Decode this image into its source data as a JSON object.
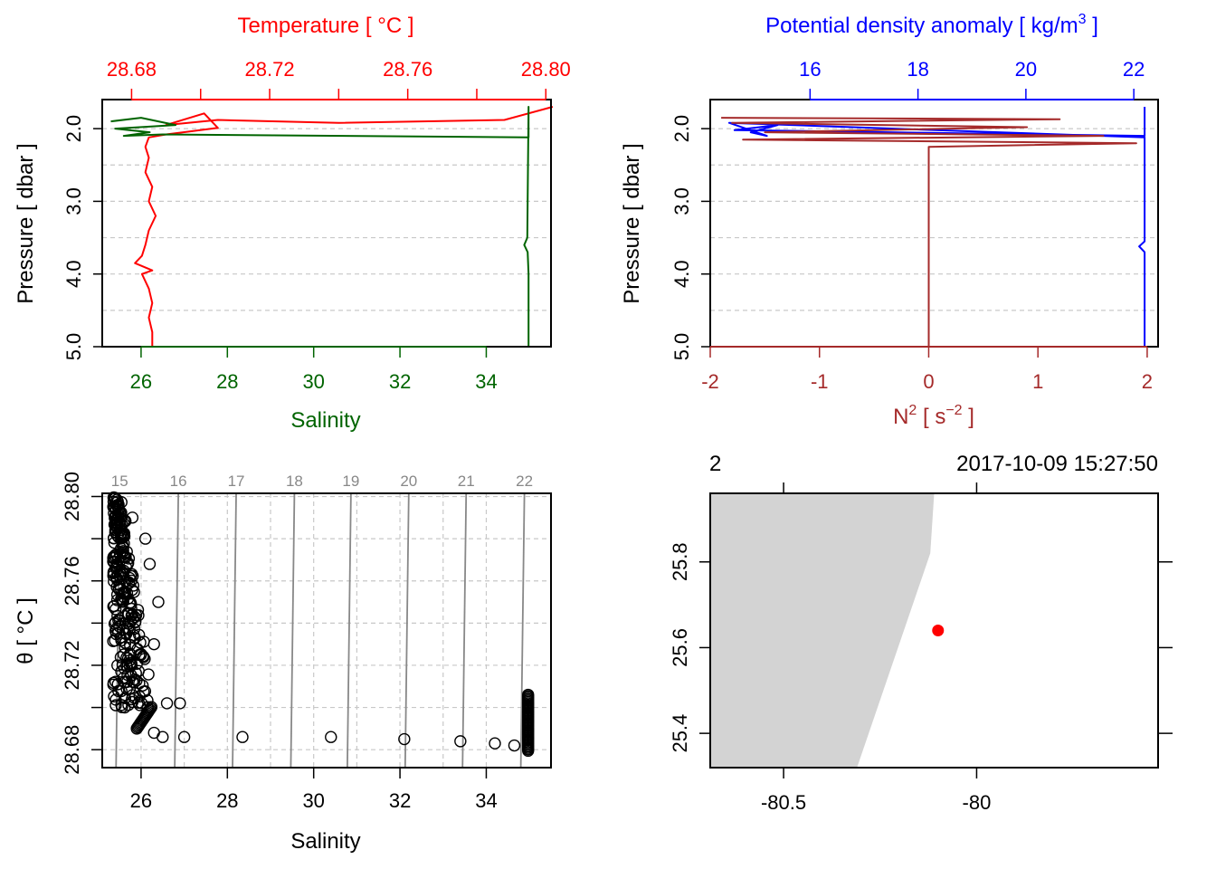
{
  "colors": {
    "temperature": "#ff0000",
    "salinity": "#006400",
    "density": "#0000ff",
    "n2": "#a52a2a",
    "isopycnal": "#888888",
    "land": "#d3d3d3",
    "station": "#ff0000"
  },
  "chart_data": [
    {
      "id": "profile_ts",
      "type": "line",
      "title": "Temperature [ °C ]",
      "xlabel": "Salinity",
      "ylabel": "Pressure [ dbar ]",
      "ylim": [
        5.0,
        1.6
      ],
      "y_ticks": [
        "2.0",
        "3.0",
        "4.0",
        "5.0"
      ],
      "top_axis": {
        "label": "Temperature [ °C ]",
        "range": [
          28.6715,
          28.8015
        ],
        "ticks": [
          "28.68",
          "28.72",
          "28.76",
          "28.80"
        ]
      },
      "bottom_axis": {
        "label": "Salinity",
        "range": [
          25.1,
          35.5
        ],
        "ticks": [
          "26",
          "28",
          "30",
          "32",
          "34"
        ]
      },
      "series": [
        {
          "name": "Temperature",
          "axis": "top",
          "points": [
            [
              28.802,
              1.7
            ],
            [
              28.788,
              1.88
            ],
            [
              28.74,
              1.92
            ],
            [
              28.705,
              1.88
            ],
            [
              28.69,
              1.95
            ],
            [
              28.701,
              1.79
            ],
            [
              28.705,
              1.99
            ],
            [
              28.695,
              2.05
            ],
            [
              28.69,
              2.08
            ],
            [
              28.685,
              2.12
            ],
            [
              28.684,
              2.25
            ],
            [
              28.685,
              2.4
            ],
            [
              28.684,
              2.6
            ],
            [
              28.686,
              2.8
            ],
            [
              28.685,
              3.0
            ],
            [
              28.687,
              3.2
            ],
            [
              28.685,
              3.4
            ],
            [
              28.684,
              3.6
            ],
            [
              28.683,
              3.75
            ],
            [
              28.681,
              3.85
            ],
            [
              28.686,
              3.95
            ],
            [
              28.683,
              4.0
            ],
            [
              28.685,
              4.2
            ],
            [
              28.686,
              4.4
            ],
            [
              28.685,
              4.6
            ],
            [
              28.686,
              4.8
            ],
            [
              28.686,
              5.0
            ]
          ]
        },
        {
          "name": "Salinity",
          "axis": "bottom",
          "points": [
            [
              25.3,
              1.9
            ],
            [
              26.0,
              1.85
            ],
            [
              26.8,
              1.95
            ],
            [
              25.4,
              2.0
            ],
            [
              26.2,
              2.05
            ],
            [
              25.6,
              2.1
            ],
            [
              26.5,
              2.08
            ],
            [
              34.98,
              2.12
            ],
            [
              34.98,
              1.7
            ],
            [
              34.95,
              3.5
            ],
            [
              34.88,
              3.6
            ],
            [
              34.96,
              3.7
            ],
            [
              34.98,
              4.0
            ],
            [
              34.98,
              5.0
            ]
          ]
        }
      ]
    },
    {
      "id": "profile_density_n2",
      "type": "line",
      "title": "Potential density anomaly [ kg/m3 ]",
      "title_superscript": "3",
      "xlabel": "N2 [ s−2 ]",
      "ylabel": "Pressure [ dbar ]",
      "ylim": [
        5.0,
        1.6
      ],
      "y_ticks": [
        "2.0",
        "3.0",
        "4.0",
        "5.0"
      ],
      "top_axis": {
        "label": "Potential density anomaly [ kg/m³ ]",
        "range": [
          14.15,
          22.45
        ],
        "ticks": [
          "16",
          "18",
          "20",
          "22"
        ]
      },
      "bottom_axis": {
        "label": "N² [ s⁻² ]",
        "range": [
          -2.0,
          2.1
        ],
        "ticks": [
          "-2",
          "-1",
          "0",
          "1",
          "2"
        ]
      },
      "series": [
        {
          "name": "Potential density anomaly",
          "axis": "top",
          "points": [
            [
              22.2,
              1.7
            ],
            [
              22.2,
              2.1
            ],
            [
              14.6,
              2.02
            ],
            [
              15.4,
              1.95
            ],
            [
              14.9,
              2.05
            ],
            [
              15.2,
              2.1
            ],
            [
              14.5,
              1.92
            ],
            [
              22.2,
              2.12
            ],
            [
              22.2,
              3.55
            ],
            [
              22.1,
              3.62
            ],
            [
              22.2,
              3.7
            ],
            [
              22.2,
              5.0
            ]
          ]
        },
        {
          "name": "N2",
          "axis": "bottom",
          "points": [
            [
              -1.9,
              1.85
            ],
            [
              1.2,
              1.87
            ],
            [
              -1.8,
              1.92
            ],
            [
              0.9,
              1.98
            ],
            [
              -1.5,
              2.05
            ],
            [
              1.6,
              2.1
            ],
            [
              -1.7,
              2.15
            ],
            [
              1.9,
              2.2
            ],
            [
              0.0,
              2.25
            ],
            [
              0.0,
              5.0
            ]
          ]
        }
      ]
    },
    {
      "id": "ts_diagram",
      "type": "scatter",
      "xlabel": "Salinity",
      "ylabel": "θ [ °C ]",
      "xlim": [
        25.1,
        35.5
      ],
      "ylim": [
        28.6715,
        28.8015
      ],
      "x_ticks": [
        "26",
        "28",
        "30",
        "32",
        "34"
      ],
      "y_ticks": [
        "28.68",
        "28.72",
        "28.76",
        "28.80"
      ],
      "isopycnals": {
        "labels": [
          "15",
          "16",
          "17",
          "18",
          "19",
          "20",
          "21",
          "22"
        ],
        "salinity_at_bottom": [
          25.42,
          26.78,
          28.12,
          29.47,
          30.78,
          32.12,
          33.45,
          34.8
        ]
      },
      "points": [
        [
          26.3,
          28.688
        ],
        [
          26.5,
          28.686
        ],
        [
          27.0,
          28.686
        ],
        [
          28.35,
          28.686
        ],
        [
          30.4,
          28.686
        ],
        [
          32.1,
          28.685
        ],
        [
          33.4,
          28.684
        ],
        [
          34.2,
          28.683
        ],
        [
          34.65,
          28.682
        ],
        [
          25.4,
          28.799
        ],
        [
          25.8,
          28.79
        ],
        [
          26.1,
          28.78
        ],
        [
          26.2,
          28.768
        ],
        [
          26.4,
          28.75
        ],
        [
          26.3,
          28.73
        ],
        [
          26.6,
          28.702
        ],
        [
          26.9,
          28.702
        ]
      ]
    },
    {
      "id": "station_map",
      "type": "scatter",
      "label_left": "2",
      "label_right": "2017-10-09 15:27:50",
      "xlim": [
        -80.69,
        -79.53
      ],
      "ylim": [
        25.32,
        25.96
      ],
      "x_ticks": [
        "-80.5",
        "-80"
      ],
      "y_ticks": [
        "25.4",
        "25.6",
        "25.8"
      ],
      "station": {
        "longitude": -80.1,
        "latitude": 25.64
      },
      "coastline": [
        [
          -80.69,
          25.96
        ],
        [
          -80.11,
          25.96
        ],
        [
          -80.12,
          25.82
        ],
        [
          -80.31,
          25.32
        ],
        [
          -80.69,
          25.32
        ]
      ]
    }
  ]
}
